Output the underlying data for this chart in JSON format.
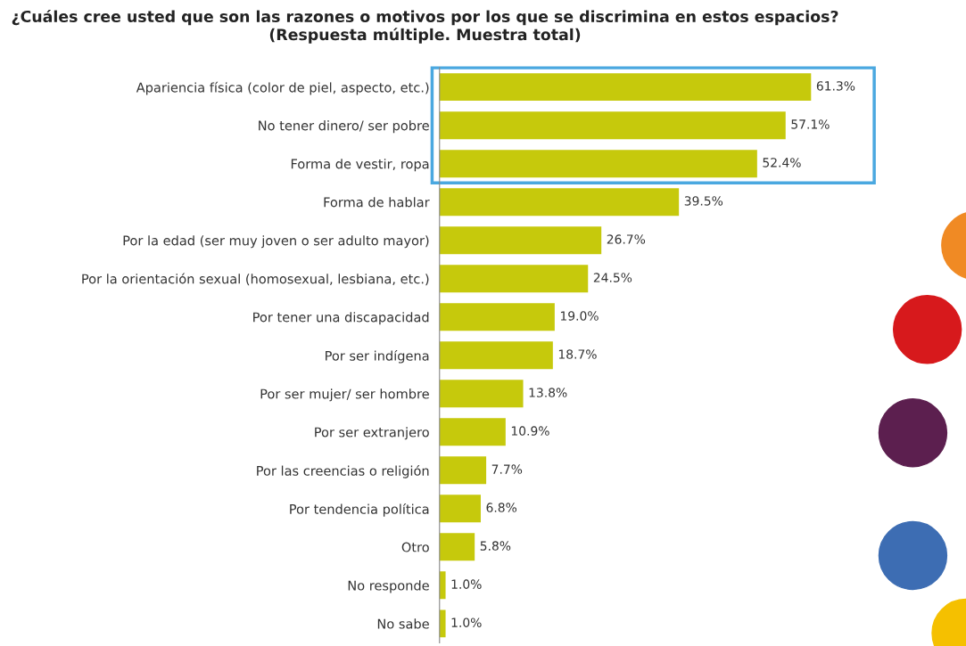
{
  "chart_data": {
    "type": "bar",
    "orientation": "horizontal",
    "title": "¿Cuáles cree usted que son las razones o motivos por los que se discrimina en estos espacios? (Respuesta múltiple. Muestra total)",
    "categories": [
      "Apariencia física (color de piel, aspecto, etc.)",
      "No tener dinero/ ser pobre",
      "Forma de vestir, ropa",
      "Forma de hablar",
      "Por la edad (ser muy joven o ser adulto mayor)",
      "Por la orientación sexual (homosexual, lesbiana, etc.)",
      "Por tener una discapacidad",
      "Por ser indígena",
      "Por ser mujer/ ser hombre",
      "Por ser extranjero",
      "Por las creencias o religión",
      "Por tendencia política",
      "Otro",
      "No responde",
      "No sabe"
    ],
    "values": [
      61.3,
      57.1,
      52.4,
      39.5,
      26.7,
      24.5,
      19.0,
      18.7,
      13.8,
      10.9,
      7.7,
      6.8,
      5.8,
      1.0,
      1.0
    ],
    "value_labels": [
      "61.3%",
      "57.1%",
      "52.4%",
      "39.5%",
      "26.7%",
      "24.5%",
      "19.0%",
      "18.7%",
      "13.8%",
      "10.9%",
      "7.7%",
      "6.8%",
      "5.8%",
      "1.0%",
      "1.0%"
    ],
    "color": "#c6c90c",
    "grid": false
  }
}
